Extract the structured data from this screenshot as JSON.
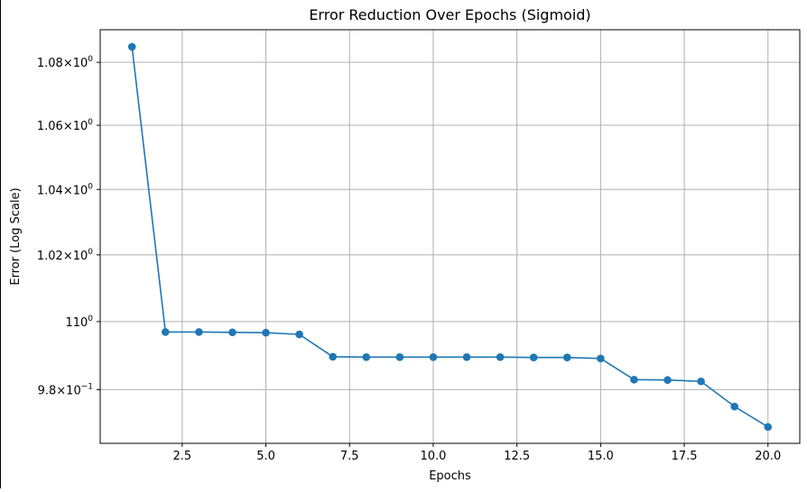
{
  "chart_data": {
    "type": "line",
    "title": "Error Reduction Over Epochs (Sigmoid)",
    "xlabel": "Epochs",
    "ylabel": "Error (Log Scale)",
    "yscale": "log",
    "grid": true,
    "xlim": [
      0.05,
      20.95
    ],
    "ylim": [
      0.9645,
      1.0905
    ],
    "colors": {
      "series": "#1f77b4",
      "grid": "#b0b0b0"
    },
    "x_ticks": [
      {
        "value": 2.5,
        "label": "2.5"
      },
      {
        "value": 5.0,
        "label": "5.0"
      },
      {
        "value": 7.5,
        "label": "7.5"
      },
      {
        "value": 10.0,
        "label": "10.0"
      },
      {
        "value": 12.5,
        "label": "12.5"
      },
      {
        "value": 15.0,
        "label": "15.0"
      },
      {
        "value": 17.5,
        "label": "17.5"
      },
      {
        "value": 20.0,
        "label": "20.0"
      }
    ],
    "y_ticks": [
      {
        "value": 1.08,
        "mantissa": "1.08",
        "exponent": "0"
      },
      {
        "value": 1.06,
        "mantissa": "1.06",
        "exponent": "0"
      },
      {
        "value": 1.04,
        "mantissa": "1.04",
        "exponent": "0"
      },
      {
        "value": 1.02,
        "mantissa": "1.02",
        "exponent": "0"
      },
      {
        "value": 1.0,
        "mantissa": "1",
        "exponent": "0"
      },
      {
        "value": 0.98,
        "mantissa": "9.8",
        "exponent": "−1"
      }
    ],
    "series": [
      {
        "x": [
          1,
          2,
          3,
          4,
          5,
          6,
          7,
          8,
          9,
          10,
          11,
          12,
          13,
          14,
          15,
          16,
          17,
          18,
          19,
          20
        ],
        "values": [
          1.085,
          0.9969,
          0.9969,
          0.9968,
          0.9967,
          0.9962,
          0.9896,
          0.9895,
          0.9895,
          0.9895,
          0.9895,
          0.9895,
          0.9894,
          0.9894,
          0.9891,
          0.9829,
          0.9828,
          0.9824,
          0.9751,
          0.9692
        ]
      }
    ]
  }
}
